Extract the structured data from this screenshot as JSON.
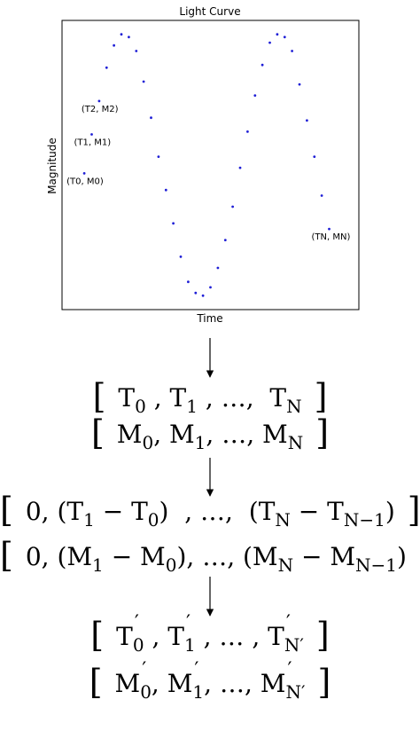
{
  "chart_data": {
    "type": "scatter",
    "title": "Light Curve",
    "xlabel": "Time",
    "ylabel": "Magnitude",
    "grid": false,
    "series_color": "#1f1fd6",
    "points": [
      {
        "x": 1,
        "y": 0.49
      },
      {
        "x": 2,
        "y": 0.63
      },
      {
        "x": 3,
        "y": 0.75
      },
      {
        "x": 4,
        "y": 0.87
      },
      {
        "x": 5,
        "y": 0.95
      },
      {
        "x": 6,
        "y": 0.99
      },
      {
        "x": 7,
        "y": 0.98
      },
      {
        "x": 8,
        "y": 0.93
      },
      {
        "x": 9,
        "y": 0.82
      },
      {
        "x": 10,
        "y": 0.69
      },
      {
        "x": 11,
        "y": 0.55
      },
      {
        "x": 12,
        "y": 0.43
      },
      {
        "x": 13,
        "y": 0.31
      },
      {
        "x": 14,
        "y": 0.19
      },
      {
        "x": 15,
        "y": 0.1
      },
      {
        "x": 16,
        "y": 0.06
      },
      {
        "x": 17,
        "y": 0.05
      },
      {
        "x": 18,
        "y": 0.08
      },
      {
        "x": 19,
        "y": 0.15
      },
      {
        "x": 20,
        "y": 0.25
      },
      {
        "x": 21,
        "y": 0.37
      },
      {
        "x": 22,
        "y": 0.51
      },
      {
        "x": 23,
        "y": 0.64
      },
      {
        "x": 24,
        "y": 0.77
      },
      {
        "x": 25,
        "y": 0.88
      },
      {
        "x": 26,
        "y": 0.96
      },
      {
        "x": 27,
        "y": 0.99
      },
      {
        "x": 28,
        "y": 0.98
      },
      {
        "x": 29,
        "y": 0.93
      },
      {
        "x": 30,
        "y": 0.81
      },
      {
        "x": 31,
        "y": 0.68
      },
      {
        "x": 32,
        "y": 0.55
      },
      {
        "x": 33,
        "y": 0.41
      },
      {
        "x": 34,
        "y": 0.29
      }
    ],
    "xlim": [
      -2,
      38
    ],
    "ylim": [
      0,
      1.04
    ],
    "annotations": [
      {
        "text": "(T0, M0)",
        "x": 1,
        "y": 0.49
      },
      {
        "text": "(T1, M1)",
        "x": 2,
        "y": 0.63
      },
      {
        "text": "(T2, M2)",
        "x": 3,
        "y": 0.75
      },
      {
        "text": "(TN, MN)",
        "x": 34,
        "y": 0.29
      }
    ]
  },
  "equations": {
    "eq1": {
      "open": "[",
      "close": "]",
      "t0": "T",
      "s0": "0",
      "c1": ",",
      "t1": "T",
      "s1": "1",
      "c2": ",",
      "dots": "…",
      "c3": ",",
      "tn": "T",
      "sn": "N"
    },
    "eq2": {
      "open": "[",
      "close": "]",
      "t0": "M",
      "s0": "0",
      "c1": ",",
      "t1": "M",
      "s1": "1",
      "c2": ",",
      "dots": "…",
      "c3": ",",
      "tn": "M",
      "sn": "N"
    },
    "eq3": {
      "open": "[",
      "close": "]",
      "zero": "0,",
      "d1": "(T",
      "d1s": "1",
      "d1m": "− T",
      "d1s2": "0",
      "d1c": ")",
      "c1": ",",
      "dots": "…",
      "c2": ",",
      "dn": "(T",
      "dns": "N",
      "dnm": "− T",
      "dns2": "N−1",
      "dnc": ")"
    },
    "eq4": {
      "open": "[",
      "close": "]",
      "zero": "0,",
      "d1": "(M",
      "d1s": "1",
      "d1m": "− M",
      "d1s2": "0",
      "d1c": "),",
      "dots": "…",
      "c2": ",",
      "dn": "(M",
      "dns": "N",
      "dnm": "− M",
      "dns2": "N−1",
      "dnc": ")"
    },
    "eq5": {
      "open": "[",
      "close": "]",
      "t0": "T",
      "s0": "0",
      "p0": "′",
      "c1": ",",
      "t1": "T",
      "s1": "1",
      "p1": "′",
      "c2": ",",
      "dots": "…",
      "c3": ",",
      "tn": "T",
      "sn": "N′",
      "pn": "′"
    },
    "eq6": {
      "open": "[",
      "close": "]",
      "t0": "M",
      "s0": "0",
      "p0": "′",
      "c1": ",",
      "t1": "M",
      "s1": "1",
      "p1": "′",
      "c2": ",",
      "dots": "…",
      "c3": ",",
      "tn": "M",
      "sn": "N′",
      "pn": "′"
    }
  }
}
